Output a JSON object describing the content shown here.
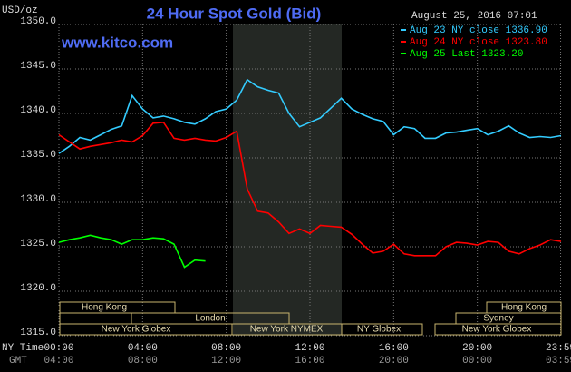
{
  "chart_data": {
    "type": "line",
    "title": "24 Hour Spot Gold (Bid)",
    "subtitle": "www.kitco.com",
    "timestamp": "August 25, 2016 07:01",
    "y_label": "USD/oz",
    "x_label": "NY Time",
    "x2_label": "GMT",
    "x": [
      0,
      0.5,
      1,
      1.5,
      2,
      2.5,
      3,
      3.5,
      4,
      4.5,
      5,
      5.5,
      6,
      6.5,
      7,
      7.5,
      8,
      8.5,
      9,
      9.5,
      10,
      10.5,
      11,
      11.5,
      12,
      12.5,
      13,
      13.5,
      14,
      14.5,
      15,
      15.5,
      16,
      16.5,
      17,
      17.5,
      18,
      18.5,
      19,
      19.5,
      20,
      20.5,
      21,
      21.5,
      22,
      22.5,
      23,
      23.5,
      24
    ],
    "series": [
      {
        "name": "Aug 23 NY close 1336.90",
        "color": "#33ccff",
        "values": [
          1335.5,
          1336.3,
          1337.3,
          1337.0,
          1337.6,
          1338.2,
          1338.6,
          1342.0,
          1340.5,
          1339.5,
          1339.7,
          1339.4,
          1339.0,
          1338.8,
          1339.4,
          1340.2,
          1340.5,
          1341.5,
          1343.8,
          1343.0,
          1342.6,
          1342.3,
          1340.0,
          1338.5,
          1339.0,
          1339.5,
          1340.6,
          1341.7,
          1340.5,
          1339.9,
          1339.4,
          1339.1,
          1337.6,
          1338.5,
          1338.3,
          1337.2,
          1337.2,
          1337.8,
          1337.9,
          1338.1,
          1338.3,
          1337.6,
          1338.0,
          1338.6,
          1337.8,
          1337.3,
          1337.4,
          1337.3,
          1337.5
        ]
      },
      {
        "name": "Aug 24 NY close 1323.80",
        "color": "#ff0000",
        "values": [
          1337.6,
          1336.8,
          1336.0,
          1336.3,
          1336.5,
          1336.7,
          1337.0,
          1336.8,
          1337.5,
          1338.9,
          1339.0,
          1337.2,
          1337.0,
          1337.2,
          1337.0,
          1336.9,
          1337.3,
          1338.0,
          1331.5,
          1329.0,
          1328.8,
          1327.8,
          1326.5,
          1327.0,
          1326.5,
          1327.4,
          1327.3,
          1327.2,
          1326.4,
          1325.3,
          1324.3,
          1324.5,
          1325.3,
          1324.2,
          1324.0,
          1324.0,
          1324.0,
          1325.0,
          1325.5,
          1325.4,
          1325.2,
          1325.6,
          1325.5,
          1324.5,
          1324.2,
          1324.8,
          1325.2,
          1325.8,
          1325.6
        ]
      },
      {
        "name": "Aug 25 Last 1323.20",
        "color": "#00ff00",
        "values": [
          1325.5,
          1325.8,
          1326.0,
          1326.3,
          1326.0,
          1325.8,
          1325.3,
          1325.8,
          1325.8,
          1326.0,
          1325.9,
          1325.3,
          1322.7,
          1323.5,
          1323.4,
          null,
          null,
          null,
          null,
          null,
          null,
          null,
          null,
          null,
          null,
          null,
          null,
          null,
          null,
          null,
          null,
          null,
          null,
          null,
          null,
          null,
          null,
          null,
          null,
          null,
          null,
          null,
          null,
          null,
          null,
          null,
          null,
          null,
          null
        ]
      }
    ],
    "xlim": [
      0,
      24
    ],
    "xticks": [
      {
        "value": 0,
        "label": "00:00"
      },
      {
        "value": 4,
        "label": "04:00"
      },
      {
        "value": 8,
        "label": "08:00"
      },
      {
        "value": 12,
        "label": "12:00"
      },
      {
        "value": 16,
        "label": "16:00"
      },
      {
        "value": 20,
        "label": "20:00"
      },
      {
        "value": 23.98,
        "label": "23:59"
      }
    ],
    "x2ticks": [
      {
        "value": 0,
        "label": "04:00"
      },
      {
        "value": 4,
        "label": "08:00"
      },
      {
        "value": 8,
        "label": "12:00"
      },
      {
        "value": 12,
        "label": "16:00"
      },
      {
        "value": 16,
        "label": "20:00"
      },
      {
        "value": 20,
        "label": "00:00"
      },
      {
        "value": 23.98,
        "label": "03:59"
      }
    ],
    "ylim": [
      1315,
      1350
    ],
    "yticks": [
      {
        "value": 1315,
        "label": "1315.0"
      },
      {
        "value": 1320,
        "label": "1320.0"
      },
      {
        "value": 1325,
        "label": "1325.0"
      },
      {
        "value": 1330,
        "label": "1330.0"
      },
      {
        "value": 1335,
        "label": "1335.0"
      },
      {
        "value": 1340,
        "label": "1340.0"
      },
      {
        "value": 1345,
        "label": "1345.0"
      },
      {
        "value": 1350,
        "label": "1350.0"
      }
    ],
    "grid": true,
    "sessions": [
      "Hong Kong",
      "London",
      "New York Globex",
      "New York NYMEX",
      "NY Globex",
      "Hong Kong",
      "Sydney",
      "New York Globex"
    ]
  }
}
